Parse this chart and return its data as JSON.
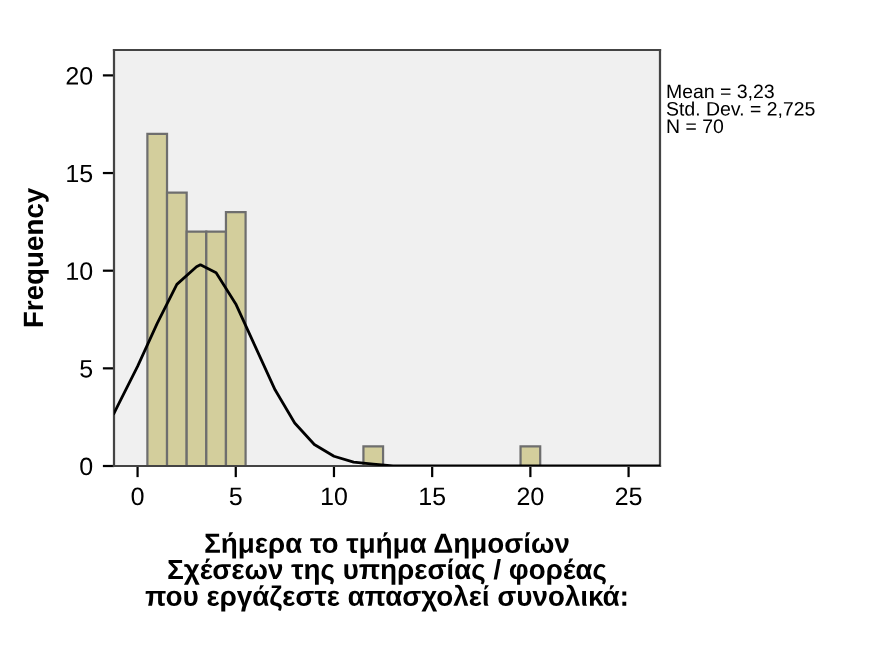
{
  "chart_data": {
    "type": "histogram",
    "xlabel": "Σήμερα το τμήμα Δημοσίων\nΣχέσεων της υπηρεσίας / φορέας\nπου εργάζεστε απασχολεί συνολικά:",
    "ylabel": "Frequency",
    "annotations": [
      "Mean = 3,23\nStd. Dev. = 2,725\nN = 70"
    ],
    "bins": [
      0.5,
      1.5,
      2.5,
      3.5,
      4.5,
      5.5,
      6.5,
      7.5,
      8.5,
      9.5,
      10.5,
      11.5,
      12.5,
      13.5,
      14.5,
      15.5,
      16.5,
      17.5,
      18.5,
      19.5,
      20.5
    ],
    "series": [
      {
        "color": "#d3ce9c",
        "values": [
          17,
          14,
          12,
          12,
          13,
          0,
          0,
          0,
          0,
          0,
          0,
          1,
          0,
          0,
          0,
          0,
          0,
          0,
          0,
          1
        ]
      },
      {
        "type": "line",
        "color": "#000000",
        "x": [
          -1.2,
          -1,
          0,
          1,
          2,
          3,
          3.2,
          4,
          5,
          6,
          7,
          8,
          9,
          10,
          11,
          12,
          13,
          15,
          26.6
        ],
        "values": [
          2.7,
          3.1,
          5.1,
          7.3,
          9.3,
          10.2,
          10.3,
          9.9,
          8.3,
          6.1,
          3.9,
          2.2,
          1.1,
          0.5,
          0.2,
          0.1,
          0,
          0,
          0
        ]
      }
    ],
    "xlim": [
      -1.2,
      26.6
    ],
    "ylim": [
      0,
      21.3
    ],
    "xticks": [
      0,
      5,
      10,
      15,
      20,
      25
    ],
    "yticks": [
      0,
      5,
      10,
      15,
      20
    ],
    "grid": false,
    "legend": false
  }
}
